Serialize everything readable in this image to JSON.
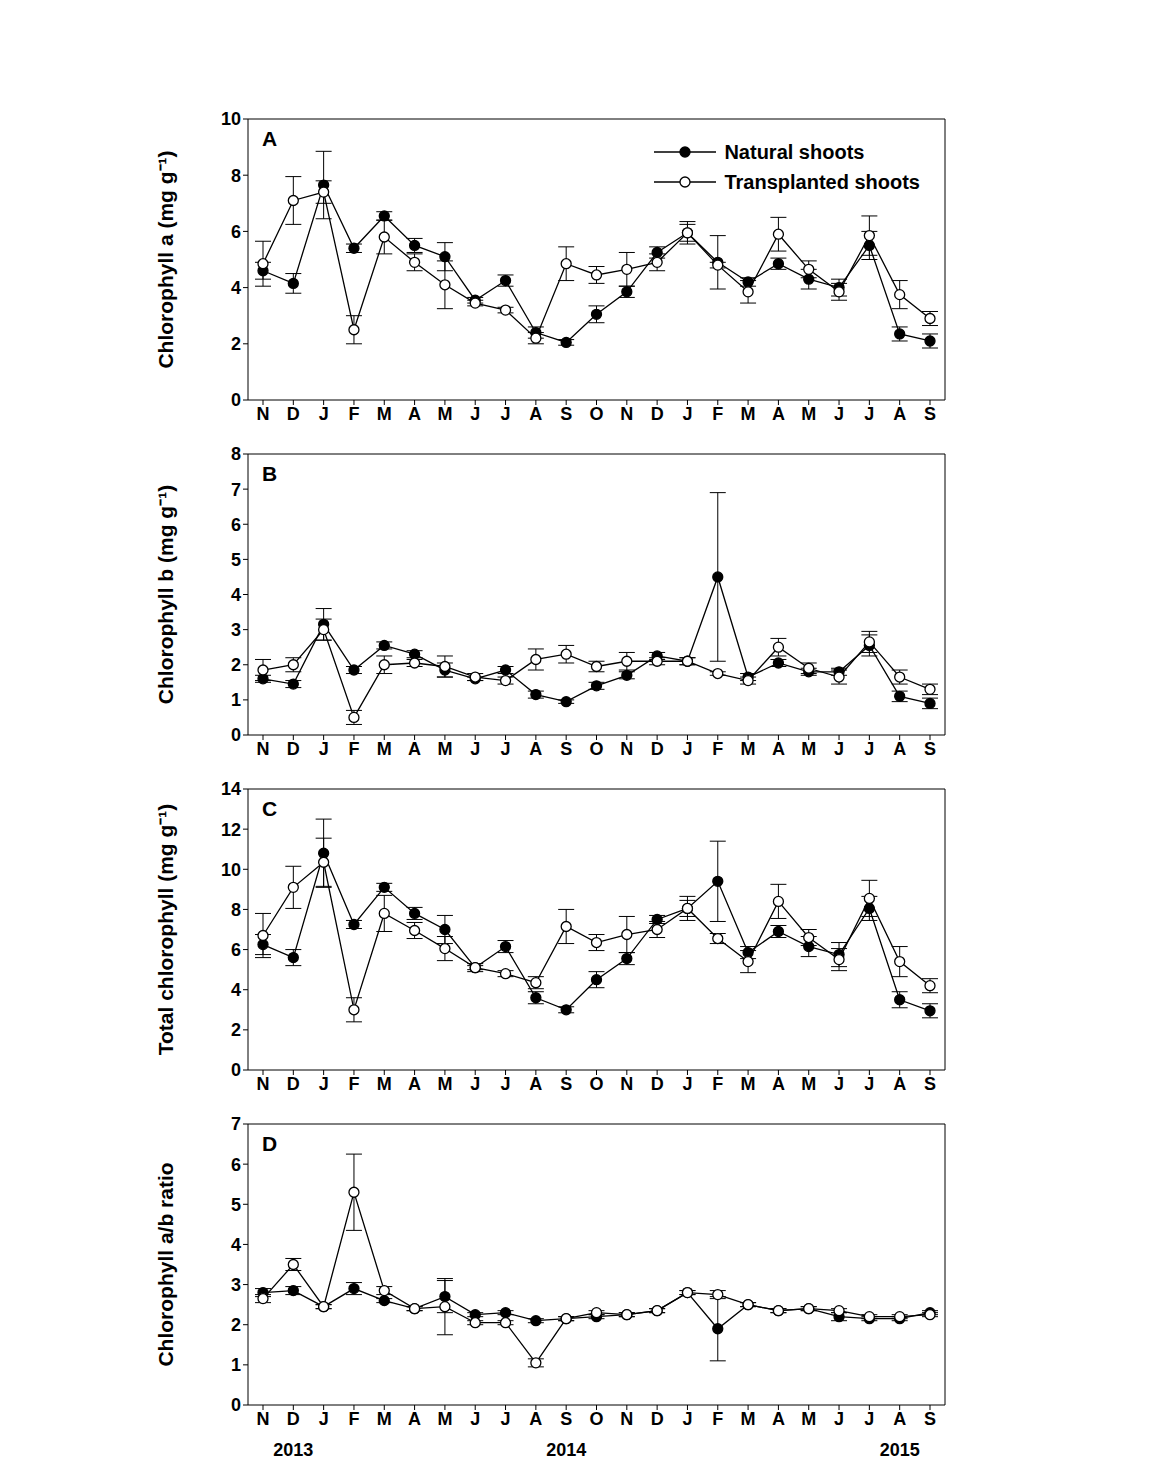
{
  "chart_data": [
    {
      "type": "line",
      "title": "A",
      "y_label": "Chlorophyll a (mg g⁻¹)",
      "categories": [
        "N",
        "D",
        "J",
        "F",
        "M",
        "A",
        "M",
        "J",
        "J",
        "A",
        "S",
        "O",
        "N",
        "D",
        "J",
        "F",
        "M",
        "A",
        "M",
        "J",
        "J",
        "A",
        "S"
      ],
      "ylim": [
        0,
        10
      ],
      "yticks": [
        0,
        2,
        4,
        6,
        8,
        10
      ],
      "grid": false,
      "legend": "upper right",
      "series": [
        {
          "name": "Natural shoots",
          "color": "#000000",
          "marker": "filled circle",
          "values": [
            4.6,
            4.15,
            7.65,
            5.4,
            6.55,
            5.5,
            5.1,
            3.55,
            4.25,
            2.4,
            2.05,
            3.05,
            3.85,
            5.25,
            5.95,
            4.9,
            4.2,
            4.85,
            4.3,
            4.0,
            5.5,
            2.35,
            2.1
          ],
          "errors": [
            0.3,
            0.35,
            1.2,
            0.15,
            0.15,
            0.25,
            0.5,
            0.1,
            0.2,
            0.2,
            0.1,
            0.3,
            0.2,
            0.2,
            0.3,
            0.95,
            0.15,
            0.2,
            0.35,
            0.3,
            0.5,
            0.25,
            0.25
          ]
        },
        {
          "name": "Transplanted shoots",
          "color": "#000000",
          "marker": "open circle",
          "values": [
            4.85,
            7.1,
            7.4,
            2.5,
            5.8,
            4.9,
            4.1,
            3.45,
            3.2,
            2.2,
            4.85,
            4.45,
            4.65,
            4.9,
            5.95,
            4.8,
            3.85,
            5.9,
            4.65,
            3.85,
            5.85,
            3.75,
            2.9
          ],
          "errors": [
            0.8,
            0.85,
            0.4,
            0.5,
            0.6,
            0.3,
            0.85,
            0.1,
            0.1,
            0.2,
            0.6,
            0.3,
            0.6,
            0.3,
            0.4,
            0.1,
            0.4,
            0.6,
            0.3,
            0.3,
            0.7,
            0.5,
            0.25
          ]
        }
      ]
    },
    {
      "type": "line",
      "title": "B",
      "y_label": "Chlorophyll b (mg g⁻¹)",
      "categories": [
        "N",
        "D",
        "J",
        "F",
        "M",
        "A",
        "M",
        "J",
        "J",
        "A",
        "S",
        "O",
        "N",
        "D",
        "J",
        "F",
        "M",
        "A",
        "M",
        "J",
        "J",
        "A",
        "S"
      ],
      "ylim": [
        0,
        8
      ],
      "yticks": [
        0,
        1,
        2,
        3,
        4,
        5,
        6,
        7,
        8
      ],
      "grid": false,
      "series": [
        {
          "name": "Natural shoots",
          "color": "#000000",
          "marker": "filled circle",
          "values": [
            1.6,
            1.45,
            3.15,
            1.85,
            2.55,
            2.3,
            1.85,
            1.6,
            1.85,
            1.15,
            0.95,
            1.4,
            1.7,
            2.25,
            2.1,
            4.5,
            1.65,
            2.05,
            1.8,
            1.8,
            2.55,
            1.1,
            0.9
          ],
          "errors": [
            0.1,
            0.1,
            0.45,
            0.1,
            0.1,
            0.1,
            0.2,
            0.05,
            0.1,
            0.1,
            0.05,
            0.1,
            0.1,
            0.1,
            0.1,
            2.4,
            0.1,
            0.1,
            0.1,
            0.1,
            0.3,
            0.15,
            0.15
          ]
        },
        {
          "name": "Transplanted shoots",
          "color": "#000000",
          "marker": "open circle",
          "values": [
            1.85,
            2.0,
            3.0,
            0.5,
            2.0,
            2.05,
            1.95,
            1.65,
            1.55,
            2.15,
            2.3,
            1.95,
            2.1,
            2.1,
            2.1,
            1.75,
            1.55,
            2.5,
            1.9,
            1.65,
            2.65,
            1.65,
            1.3
          ],
          "errors": [
            0.3,
            0.2,
            0.3,
            0.2,
            0.25,
            0.1,
            0.3,
            0.1,
            0.1,
            0.3,
            0.25,
            0.15,
            0.25,
            0.1,
            0.1,
            0.05,
            0.1,
            0.25,
            0.15,
            0.2,
            0.3,
            0.2,
            0.15
          ]
        }
      ]
    },
    {
      "type": "line",
      "title": "C",
      "y_label": "Total chlorophyll (mg g⁻¹)",
      "categories": [
        "N",
        "D",
        "J",
        "F",
        "M",
        "A",
        "M",
        "J",
        "J",
        "A",
        "S",
        "O",
        "N",
        "D",
        "J",
        "F",
        "M",
        "A",
        "M",
        "J",
        "J",
        "A",
        "S"
      ],
      "ylim": [
        0,
        14
      ],
      "yticks": [
        0,
        2,
        4,
        6,
        8,
        10,
        12,
        14
      ],
      "grid": false,
      "series": [
        {
          "name": "Natural shoots",
          "color": "#000000",
          "marker": "filled circle",
          "values": [
            6.25,
            5.6,
            10.8,
            7.25,
            9.1,
            7.8,
            7.0,
            5.1,
            6.15,
            3.6,
            3.0,
            4.5,
            5.55,
            7.5,
            8.05,
            9.4,
            5.85,
            6.9,
            6.15,
            5.75,
            8.05,
            3.5,
            2.95
          ],
          "errors": [
            0.5,
            0.4,
            1.7,
            0.2,
            0.2,
            0.3,
            0.7,
            0.1,
            0.3,
            0.3,
            0.15,
            0.4,
            0.3,
            0.2,
            0.4,
            2.0,
            0.3,
            0.3,
            0.5,
            0.6,
            0.6,
            0.4,
            0.35
          ]
        },
        {
          "name": "Transplanted shoots",
          "color": "#000000",
          "marker": "open circle",
          "values": [
            6.7,
            9.1,
            10.35,
            3.0,
            7.8,
            6.95,
            6.05,
            5.1,
            4.8,
            4.35,
            7.15,
            6.35,
            6.75,
            7.0,
            8.05,
            6.55,
            5.4,
            8.4,
            6.6,
            5.5,
            8.55,
            5.4,
            4.2
          ],
          "errors": [
            1.1,
            1.05,
            1.2,
            0.6,
            0.9,
            0.4,
            0.6,
            0.2,
            0.15,
            0.3,
            0.85,
            0.4,
            0.9,
            0.4,
            0.6,
            0.25,
            0.55,
            0.85,
            0.4,
            0.55,
            0.9,
            0.75,
            0.35
          ]
        }
      ]
    },
    {
      "type": "line",
      "title": "D",
      "y_label": "Chlorophyll a/b ratio",
      "categories": [
        "N",
        "D",
        "J",
        "F",
        "M",
        "A",
        "M",
        "J",
        "J",
        "A",
        "S",
        "O",
        "N",
        "D",
        "J",
        "F",
        "M",
        "A",
        "M",
        "J",
        "J",
        "A",
        "S"
      ],
      "ylim": [
        0,
        7
      ],
      "yticks": [
        0,
        1,
        2,
        3,
        4,
        5,
        6,
        7
      ],
      "grid": false,
      "annotations": [
        {
          "text": "2013",
          "x": 1
        },
        {
          "text": "2014",
          "x": 10
        },
        {
          "text": "2015",
          "x": 21
        }
      ],
      "series": [
        {
          "name": "Natural shoots",
          "color": "#000000",
          "marker": "filled circle",
          "values": [
            2.8,
            2.85,
            2.45,
            2.9,
            2.6,
            2.4,
            2.7,
            2.25,
            2.3,
            2.1,
            2.15,
            2.2,
            2.25,
            2.35,
            2.8,
            1.9,
            2.5,
            2.35,
            2.4,
            2.2,
            2.15,
            2.15,
            2.3
          ],
          "errors": [
            0.1,
            0.1,
            0.05,
            0.15,
            0.05,
            0.05,
            0.4,
            0.05,
            0.05,
            0.05,
            0.05,
            0.05,
            0.05,
            0.05,
            0.05,
            0.8,
            0.05,
            0.05,
            0.05,
            0.1,
            0.05,
            0.05,
            0.05
          ]
        },
        {
          "name": "Transplanted shoots",
          "color": "#000000",
          "marker": "open circle",
          "values": [
            2.65,
            3.5,
            2.45,
            5.3,
            2.85,
            2.4,
            2.45,
            2.05,
            2.05,
            1.05,
            2.15,
            2.3,
            2.25,
            2.35,
            2.8,
            2.75,
            2.5,
            2.35,
            2.4,
            2.35,
            2.2,
            2.2,
            2.25
          ],
          "errors": [
            0.1,
            0.15,
            0.05,
            0.95,
            0.1,
            0.05,
            0.7,
            0.05,
            0.05,
            0.1,
            0.05,
            0.05,
            0.05,
            0.05,
            0.05,
            0.1,
            0.05,
            0.05,
            0.05,
            0.05,
            0.05,
            0.05,
            0.05
          ]
        }
      ]
    }
  ]
}
